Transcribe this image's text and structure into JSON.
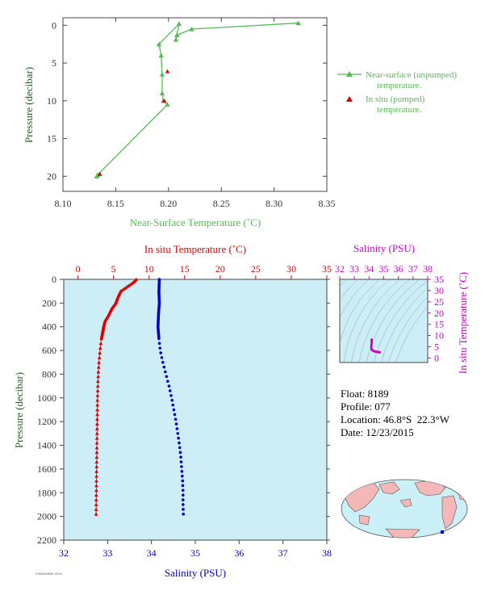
{
  "float_info": {
    "float_label": "Float:",
    "float_value": "8189",
    "profile_label": "Profile:",
    "profile_value": "077",
    "location_label": "Location:",
    "location_value": "46.8°S  22.3°W",
    "date_label": "Date:",
    "date_value": "12/23/2015"
  },
  "footer_code": "F05289/SBE 2015",
  "colors": {
    "green": "#55bb55",
    "red": "#dd0000",
    "blue": "#0000cc",
    "magenta": "#cc00cc",
    "axis_text": "#333333",
    "panel_bg": "#cdeef7"
  },
  "chart_data": [
    {
      "id": "near_surface",
      "type": "line",
      "xlabel": "Near-Surface Temperature (˚C)",
      "ylabel": "Pressure (decibar)",
      "xlim": [
        8.1,
        8.35
      ],
      "ylim": [
        22,
        -1
      ],
      "xticks": [
        "8.10",
        "8.15",
        "8.20",
        "8.25",
        "8.30",
        "8.35"
      ],
      "yticks": [
        "0",
        "5",
        "10",
        "15",
        "20"
      ],
      "series": [
        {
          "name": "Near-surface (unpumped)\ntemperature.",
          "marker": "triangle-line",
          "x": [
            8.323,
            8.222,
            8.208,
            8.207,
            8.21,
            8.191,
            8.193,
            8.194,
            8.194,
            8.195,
            8.199,
            8.133,
            8.132
          ],
          "y": [
            -0.3,
            0.5,
            1.3,
            1.9,
            -0.2,
            2.5,
            4.0,
            6.5,
            9.0,
            10.0,
            10.5,
            19.8,
            20.0
          ]
        },
        {
          "name": "In situ (pumped)\ntemperature.",
          "marker": "triangle",
          "x": [
            8.199,
            8.196,
            8.135
          ],
          "y": [
            6.1,
            10.0,
            19.7
          ]
        }
      ]
    },
    {
      "id": "profile",
      "type": "scatter",
      "top_xlabel": "In situ Temperature (˚C)",
      "bottom_xlabel": "Salinity (PSU)",
      "ylabel": "Pressure (decibar)",
      "temp_lim": [
        -2,
        35
      ],
      "sal_lim": [
        32,
        38
      ],
      "ylim": [
        2200,
        0
      ],
      "temp_ticks": [
        "0",
        "5",
        "10",
        "15",
        "20",
        "25",
        "30",
        "35"
      ],
      "sal_ticks": [
        "32",
        "33",
        "34",
        "35",
        "36",
        "37",
        "38"
      ],
      "yticks": [
        "0",
        "200",
        "400",
        "600",
        "800",
        "1000",
        "1200",
        "1400",
        "1600",
        "1800",
        "2000",
        "2200"
      ],
      "temperature": {
        "pressure": [
          0,
          25,
          50,
          75,
          100,
          150,
          200,
          250,
          300,
          350,
          400,
          500,
          600,
          700,
          800,
          1000,
          1200,
          1400,
          1600,
          1800,
          2000
        ],
        "values": [
          8.2,
          7.8,
          7.2,
          6.6,
          6.0,
          5.6,
          5.3,
          4.7,
          4.3,
          3.8,
          3.6,
          3.3,
          3.1,
          2.95,
          2.85,
          2.75,
          2.7,
          2.66,
          2.62,
          2.58,
          2.55
        ]
      },
      "salinity": {
        "pressure": [
          0,
          100,
          200,
          300,
          400,
          500,
          600,
          700,
          800,
          900,
          1000,
          1100,
          1200,
          1300,
          1400,
          1500,
          1600,
          1700,
          1800,
          1900,
          2000
        ],
        "values": [
          34.18,
          34.17,
          34.18,
          34.16,
          34.15,
          34.17,
          34.2,
          34.26,
          34.33,
          34.4,
          34.46,
          34.51,
          34.56,
          34.6,
          34.64,
          34.67,
          34.69,
          34.71,
          34.72,
          34.72,
          34.73
        ]
      }
    },
    {
      "id": "ts_inset",
      "type": "scatter",
      "top_xlabel": "Salinity (PSU)",
      "right_ylabel": "In situ Temperature (˚C)",
      "xlim": [
        32,
        38
      ],
      "ylim": [
        -2,
        35
      ],
      "xticks": [
        "32",
        "33",
        "34",
        "35",
        "36",
        "37",
        "38"
      ],
      "yticks": [
        "0",
        "5",
        "10",
        "15",
        "20",
        "25",
        "30",
        "35"
      ],
      "series": [
        {
          "salinity": [
            34.18,
            34.17,
            34.18,
            34.16,
            34.15,
            34.17,
            34.2,
            34.26,
            34.33,
            34.4,
            34.46,
            34.52,
            34.6,
            34.67,
            34.73
          ],
          "temperature": [
            8.2,
            7.5,
            6.5,
            5.6,
            4.8,
            4.0,
            3.6,
            3.3,
            3.1,
            2.95,
            2.85,
            2.75,
            2.68,
            2.6,
            2.55
          ]
        }
      ]
    }
  ]
}
